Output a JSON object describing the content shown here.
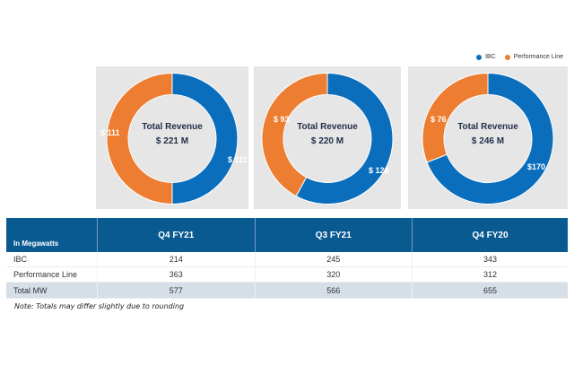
{
  "legend": [
    {
      "label": "IBC",
      "color": "#0a6ebd"
    },
    {
      "label": "Performance Line",
      "color": "#ed7d31"
    }
  ],
  "chart_data": [
    {
      "type": "pie",
      "variant": "donut",
      "center_title": "Total Revenue",
      "center_total": "$ 221 M",
      "categories": [
        "IBC",
        "Performance Line"
      ],
      "values": [
        111,
        111
      ],
      "labels": [
        "$ 111",
        "$ 111"
      ],
      "colors": [
        "#0a6ebd",
        "#ed7d31"
      ]
    },
    {
      "type": "pie",
      "variant": "donut",
      "center_title": "Total Revenue",
      "center_total": "$ 220 M",
      "categories": [
        "IBC",
        "Performance Line"
      ],
      "values": [
        128,
        93
      ],
      "labels": [
        "$ 128",
        "$ 93"
      ],
      "colors": [
        "#0a6ebd",
        "#ed7d31"
      ]
    },
    {
      "type": "pie",
      "variant": "donut",
      "center_title": "Total Revenue",
      "center_total": "$ 246 M",
      "categories": [
        "IBC",
        "Performance Line"
      ],
      "values": [
        170,
        76
      ],
      "labels": [
        "$170",
        "$ 76"
      ],
      "colors": [
        "#0a6ebd",
        "#ed7d31"
      ]
    },
    {
      "type": "table",
      "header": [
        "In Megawatts",
        "Q4 FY21",
        "Q3 FY21",
        "Q4 FY20"
      ],
      "rows": [
        [
          "IBC",
          "214",
          "245",
          "343"
        ],
        [
          "Performance Line",
          "363",
          "320",
          "312"
        ],
        [
          "Total MW",
          "577",
          "566",
          "655"
        ]
      ]
    }
  ],
  "note": "Note: Totals may differ slightly due to rounding"
}
